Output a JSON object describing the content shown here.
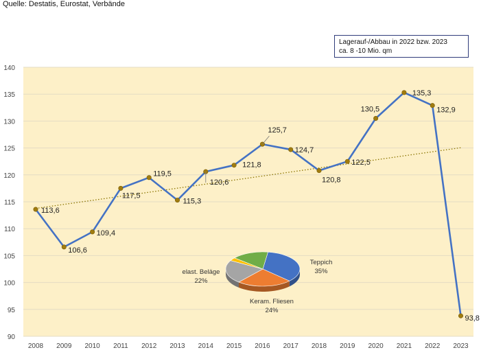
{
  "source": "Quelle: Destatis, Eurostat, Verbände",
  "note": {
    "line1": "Lagerauf-/Abbau in 2022 bzw. 2023",
    "line2": "ca. 8 -10 Mio. qm"
  },
  "colors": {
    "plot_bg": "#fdf0c8",
    "line": "#4472c4",
    "marker": "#a07c10",
    "trend": "#8a7400",
    "pie_teppich": "#4472c4",
    "pie_fliesen": "#ed7d31",
    "pie_elast": "#a5a5a5",
    "pie_other": "#ffc000",
    "pie_green": "#70ad47"
  },
  "chart_data": [
    {
      "type": "line",
      "x": [
        "2008",
        "2009",
        "2010",
        "2011",
        "2012",
        "2013",
        "2014",
        "2015",
        "2016",
        "2017",
        "2018",
        "2019",
        "2020",
        "2021",
        "2022",
        "2023"
      ],
      "values": [
        113.6,
        106.6,
        109.4,
        117.5,
        119.5,
        115.3,
        120.6,
        121.8,
        125.7,
        124.7,
        120.8,
        122.5,
        130.5,
        135.3,
        132.9,
        93.8
      ],
      "data_labels": [
        "113,6",
        "106,6",
        "109,4",
        "117,5",
        "119,5",
        "115,3",
        "120,6",
        "121,8",
        "125,7",
        "124,7",
        "120,8",
        "122,5",
        "130,5",
        "135,3",
        "132,9",
        "93,8"
      ],
      "ylim": [
        90,
        140
      ],
      "yticks": [
        90,
        95,
        100,
        105,
        110,
        115,
        120,
        125,
        130,
        135,
        140
      ],
      "trendline": "linear",
      "grid": true
    },
    {
      "type": "pie",
      "slices": [
        {
          "label": "Teppich",
          "pct_label": "35%",
          "value": 35
        },
        {
          "label": "Keram. Fliesen",
          "pct_label": "24%",
          "value": 24
        },
        {
          "label": "elast. Beläge",
          "pct_label": "22%",
          "value": 22
        },
        {
          "label": "",
          "pct_label": "",
          "value": 3
        },
        {
          "label": "",
          "pct_label": "",
          "value": 16
        }
      ]
    }
  ]
}
